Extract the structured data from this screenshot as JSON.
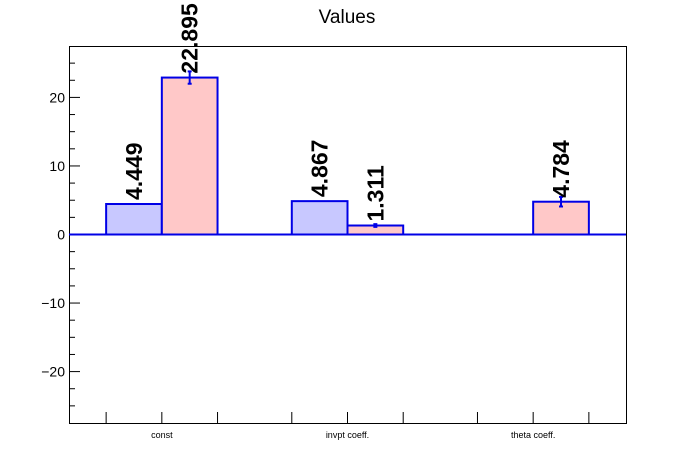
{
  "chart_data": {
    "type": "bar",
    "title": "Values",
    "xlabel": "",
    "ylabel": "",
    "categories": [
      "const",
      "invpt coeff.",
      "theta coeff."
    ],
    "ylim": [
      -27.5,
      27.5
    ],
    "yticks": [
      -20,
      -10,
      0,
      10,
      20
    ],
    "grid": false,
    "series": [
      {
        "color": "#c8c8ff",
        "edge_color": "#0000e6",
        "values": [
          4.449,
          4.867,
          null
        ],
        "value_labels": [
          "4.449",
          "4.867",
          ""
        ],
        "errors": [
          0,
          0,
          0
        ]
      },
      {
        "color": "#ffc8c8",
        "edge_color": "#0000e6",
        "values": [
          22.895,
          1.311,
          4.784
        ],
        "value_labels": [
          "22.895",
          "1.311",
          "4.784"
        ],
        "errors": [
          0.9,
          0.2,
          0.7
        ]
      }
    ]
  }
}
